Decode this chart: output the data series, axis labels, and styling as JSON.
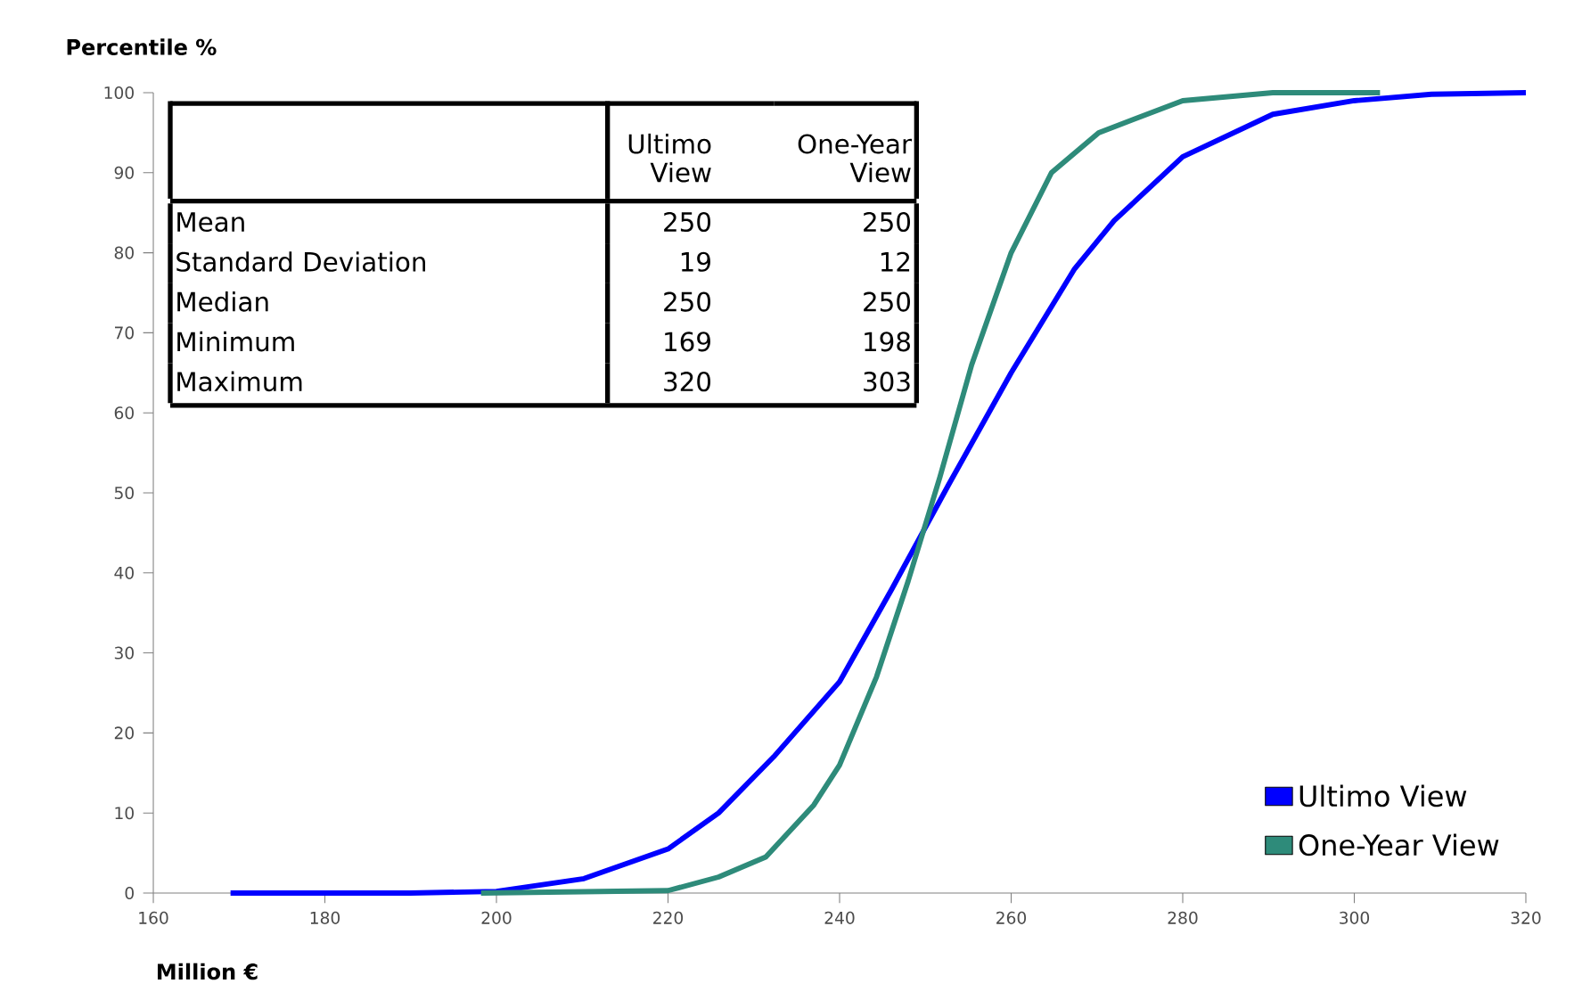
{
  "chart_data": {
    "type": "line",
    "ylabel": "Percentile %",
    "xlabel": "Million €",
    "xlim": [
      160,
      320
    ],
    "xticks": [
      160,
      180,
      200,
      220,
      240,
      260,
      280,
      300,
      320
    ],
    "ylim": [
      0,
      100
    ],
    "yticks": [
      0,
      10,
      20,
      30,
      40,
      50,
      60,
      70,
      80,
      90,
      100
    ],
    "grid": false,
    "legend": "bottom right",
    "marker": "none",
    "line_style": "solid",
    "series": [
      {
        "name": "Ultimo View",
        "color": "#0000ff",
        "x": [
          169,
          190,
          200,
          210.2,
          220,
          225.9,
          232.3,
          240,
          246.1,
          252.7,
          260,
          267.4,
          272,
          280,
          290.5,
          300,
          309,
          320
        ],
        "values": [
          0,
          0,
          0.2,
          1.8,
          5.5,
          10,
          17,
          26.4,
          38,
          51,
          65,
          78,
          84,
          92,
          97.3,
          99,
          99.8,
          100
        ]
      },
      {
        "name": "One-Year View",
        "color": "#2e8b7a",
        "x": [
          198.2,
          220,
          225.9,
          231.4,
          237,
          240,
          244.3,
          248,
          251.7,
          255.4,
          260,
          264.7,
          270.2,
          280,
          290.5,
          303
        ],
        "values": [
          0,
          0.3,
          2,
          4.5,
          11,
          16,
          27,
          39,
          52,
          66,
          80,
          90,
          95,
          99,
          100,
          100
        ]
      }
    ],
    "annotations": [
      "Ultimo View",
      "One-Year View",
      "Mean",
      "250",
      "250",
      "Standard Deviation",
      "19",
      "12",
      "Median",
      "250",
      "250",
      "Minimum",
      "169",
      "198",
      "Maximum",
      "320",
      "303"
    ]
  }
}
